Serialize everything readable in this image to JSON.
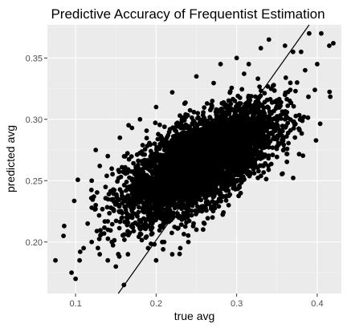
{
  "chart_data": {
    "type": "scatter",
    "title": "Predictive Accuracy of Frequentist Estimation",
    "xlabel": "true avg",
    "ylabel": "predicted avg",
    "xlim": [
      0.065,
      0.43
    ],
    "ylim": [
      0.158,
      0.377
    ],
    "xticks": [
      0.1,
      0.2,
      0.3,
      0.4
    ],
    "xtick_labels": [
      "0.1",
      "0.2",
      "0.3",
      "0.4"
    ],
    "yticks": [
      0.2,
      0.25,
      0.3,
      0.35
    ],
    "ytick_labels": [
      "0.20",
      "0.25",
      "0.30",
      "0.35"
    ],
    "grid": true,
    "legend": "none",
    "reference_line": {
      "description": "y = x",
      "points": [
        [
          0.153,
          0.158
        ],
        [
          0.39,
          0.377
        ]
      ]
    },
    "cloud": {
      "center": [
        0.255,
        0.265
      ],
      "sd": [
        0.045,
        0.022
      ],
      "correlation": 0.66,
      "count": 5000
    },
    "points": [
      [
        0.075,
        0.185
      ],
      [
        0.085,
        0.205
      ],
      [
        0.095,
        0.175
      ],
      [
        0.1,
        0.17
      ],
      [
        0.105,
        0.185
      ],
      [
        0.11,
        0.195
      ],
      [
        0.115,
        0.215
      ],
      [
        0.12,
        0.2
      ],
      [
        0.125,
        0.23
      ],
      [
        0.13,
        0.19
      ],
      [
        0.14,
        0.185
      ],
      [
        0.145,
        0.2
      ],
      [
        0.15,
        0.18
      ],
      [
        0.16,
        0.165
      ],
      [
        0.165,
        0.19
      ],
      [
        0.17,
        0.22
      ],
      [
        0.12,
        0.25
      ],
      [
        0.13,
        0.262
      ],
      [
        0.14,
        0.27
      ],
      [
        0.125,
        0.275
      ],
      [
        0.155,
        0.285
      ],
      [
        0.17,
        0.293
      ],
      [
        0.18,
        0.3
      ],
      [
        0.2,
        0.31
      ],
      [
        0.22,
        0.322
      ],
      [
        0.25,
        0.335
      ],
      [
        0.28,
        0.345
      ],
      [
        0.3,
        0.35
      ],
      [
        0.315,
        0.345
      ],
      [
        0.33,
        0.358
      ],
      [
        0.34,
        0.365
      ],
      [
        0.36,
        0.36
      ],
      [
        0.37,
        0.355
      ],
      [
        0.38,
        0.355
      ],
      [
        0.39,
        0.37
      ],
      [
        0.405,
        0.37
      ],
      [
        0.415,
        0.36
      ],
      [
        0.42,
        0.362
      ],
      [
        0.4,
        0.345
      ],
      [
        0.385,
        0.34
      ],
      [
        0.375,
        0.33
      ],
      [
        0.36,
        0.32
      ],
      [
        0.35,
        0.31
      ],
      [
        0.34,
        0.3
      ],
      [
        0.36,
        0.3
      ],
      [
        0.33,
        0.285
      ],
      [
        0.31,
        0.26
      ],
      [
        0.32,
        0.27
      ],
      [
        0.3,
        0.25
      ],
      [
        0.28,
        0.24
      ],
      [
        0.29,
        0.23
      ],
      [
        0.27,
        0.22
      ],
      [
        0.25,
        0.21
      ],
      [
        0.26,
        0.215
      ],
      [
        0.24,
        0.2
      ],
      [
        0.23,
        0.195
      ],
      [
        0.22,
        0.19
      ],
      [
        0.21,
        0.2
      ],
      [
        0.2,
        0.185
      ],
      [
        0.19,
        0.195
      ]
    ]
  }
}
